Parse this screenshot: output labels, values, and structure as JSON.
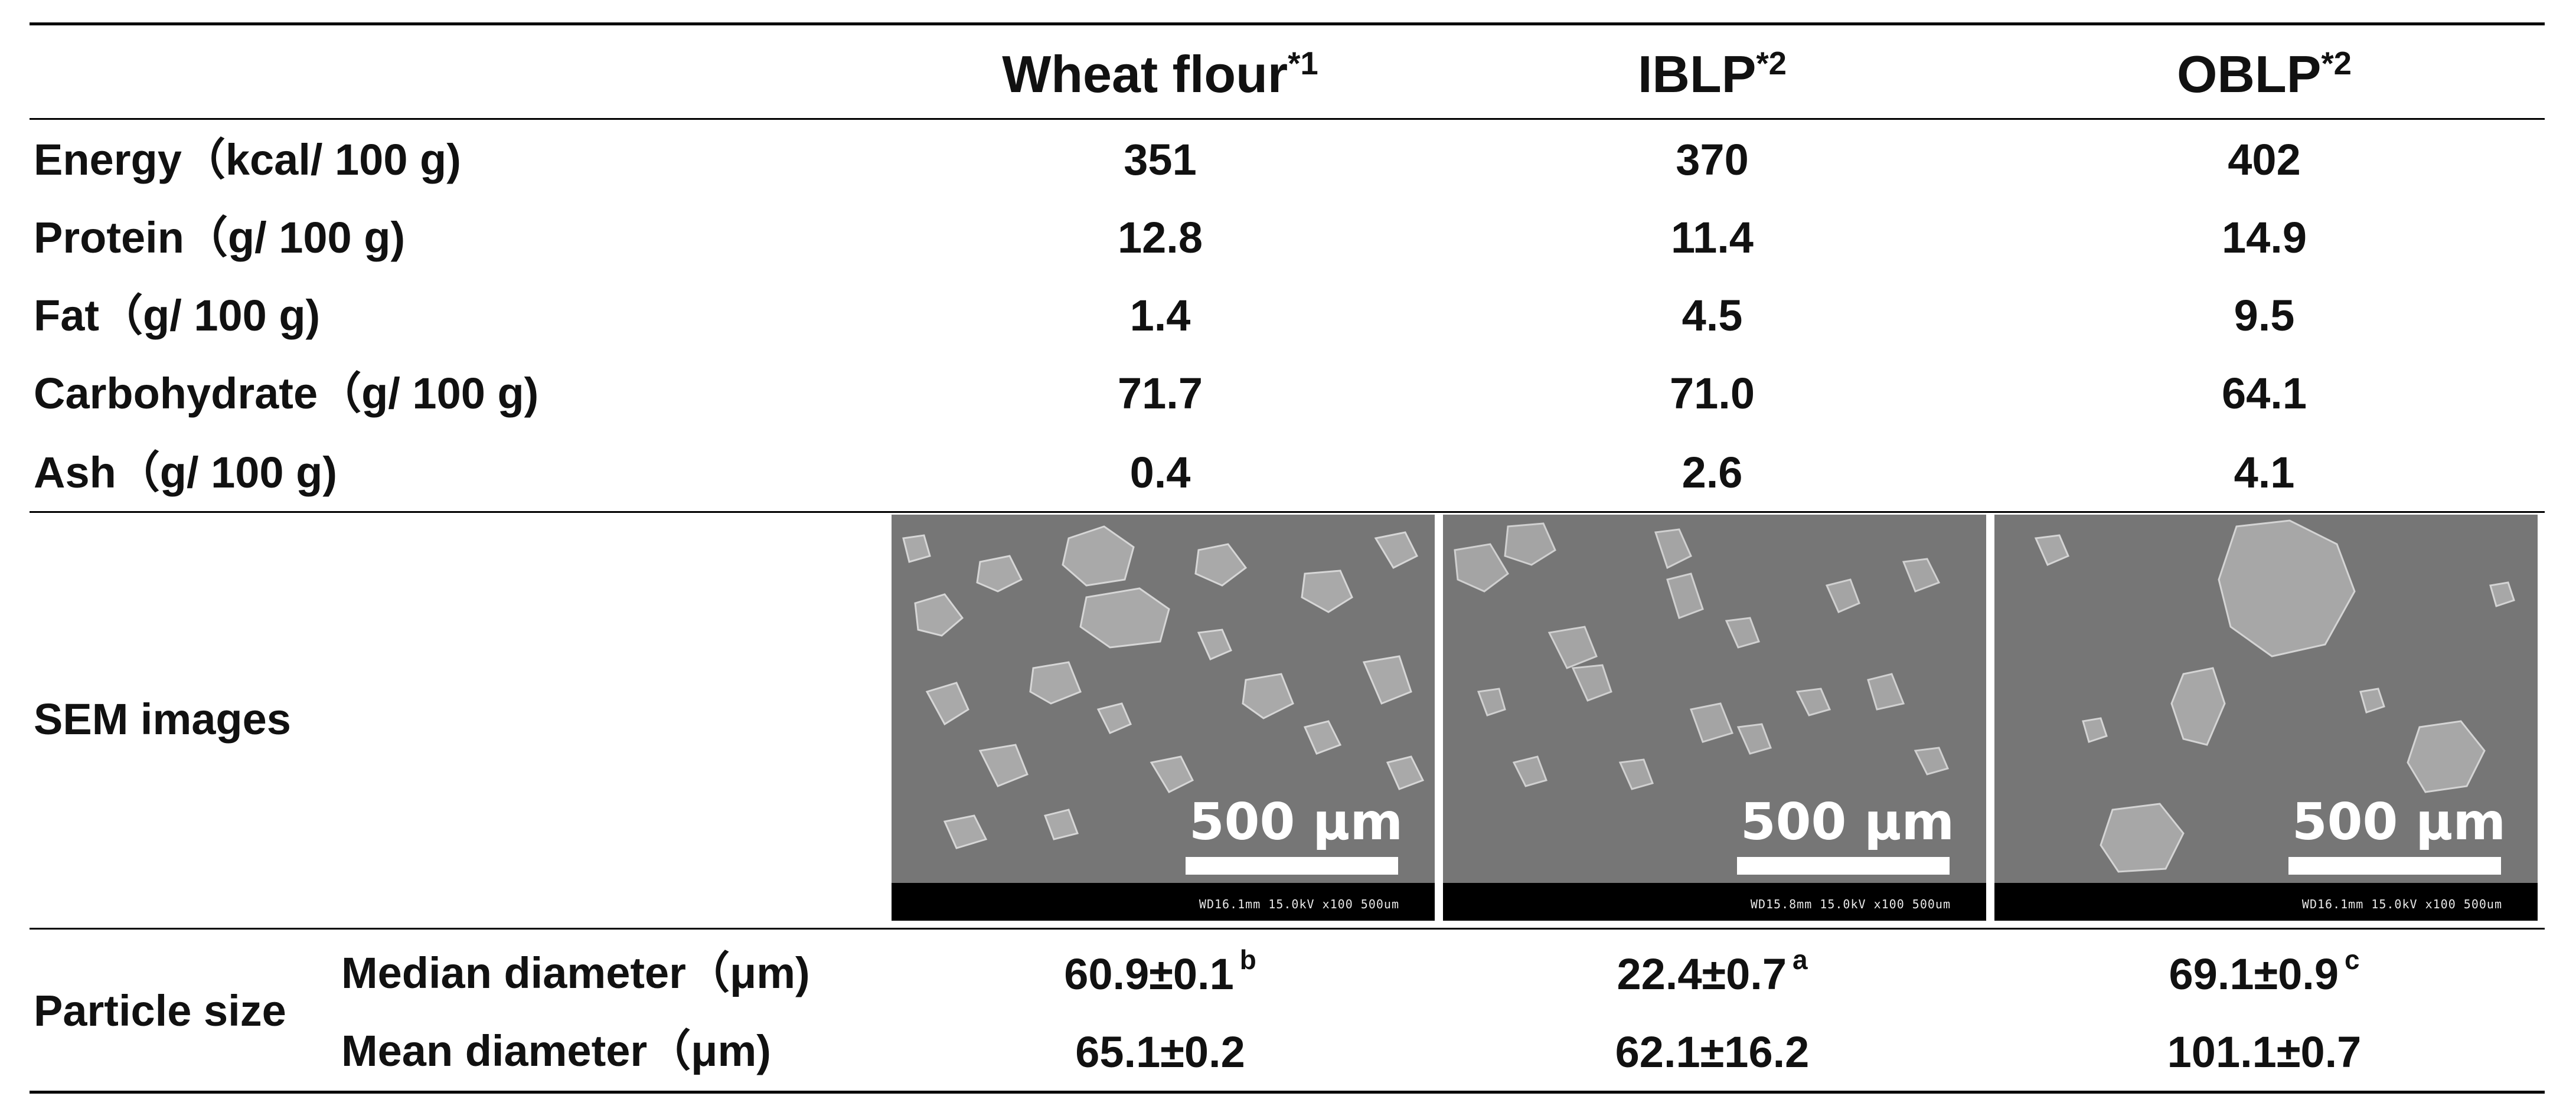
{
  "columns": [
    {
      "name": "Wheat flour",
      "note": "*1"
    },
    {
      "name": "IBLP",
      "note": "*2"
    },
    {
      "name": "OBLP",
      "note": "*2"
    }
  ],
  "rows": [
    {
      "label": "Energy（kcal/ 100 g)",
      "values": [
        "351",
        "370",
        "402"
      ]
    },
    {
      "label": "Protein（g/ 100 g)",
      "values": [
        "12.8",
        "11.4",
        "14.9"
      ]
    },
    {
      "label": "Fat（g/ 100 g)",
      "values": [
        "1.4",
        "4.5",
        "9.5"
      ]
    },
    {
      "label": "Carbohydrate（g/ 100 g)",
      "values": [
        "71.7",
        "71.0",
        "64.1"
      ]
    },
    {
      "label": "Ash（g/ 100 g)",
      "values": [
        "0.4",
        "2.6",
        "4.1"
      ]
    }
  ],
  "sem": {
    "label": "SEM images",
    "images": [
      {
        "scale_label": "500 µm",
        "info": "WD16.1mm 15.0kV x100  500um"
      },
      {
        "scale_label": "500 µm",
        "info": "WD15.8mm 15.0kV x100  500um"
      },
      {
        "scale_label": "500 µm",
        "info": "WD16.1mm 15.0kV x100  500um"
      }
    ]
  },
  "particle_size": {
    "label": "Particle size",
    "rows": [
      {
        "label": "Median diameter（μm)",
        "values": [
          "60.9±0.1",
          "22.4±0.7",
          "69.1±0.9"
        ],
        "sig": [
          "b",
          "a",
          "c"
        ]
      },
      {
        "label": "Mean diameter（μm)",
        "values": [
          "65.1±0.2",
          "62.1±16.2",
          "101.1±0.7"
        ]
      }
    ]
  }
}
